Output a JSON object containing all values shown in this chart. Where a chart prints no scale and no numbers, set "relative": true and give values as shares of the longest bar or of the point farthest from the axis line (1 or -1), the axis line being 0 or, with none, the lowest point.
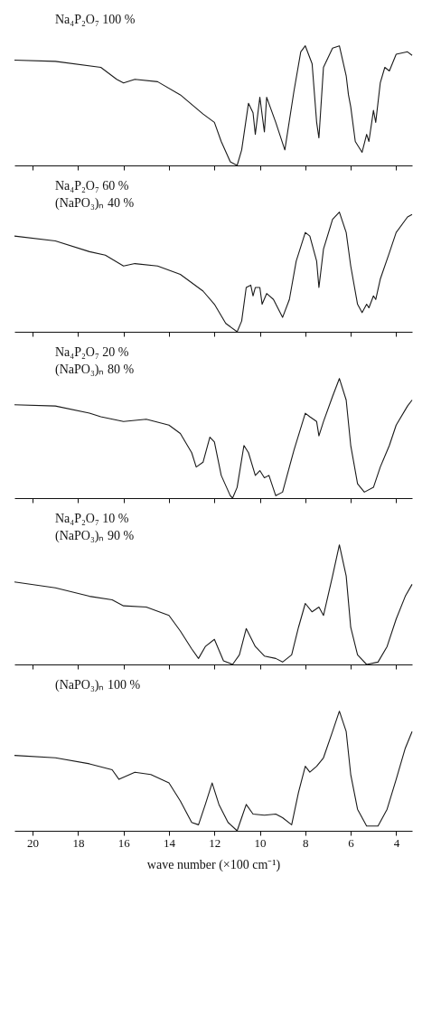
{
  "chart_data": [
    {
      "type": "line",
      "relative": true,
      "color": "#1a1a1a",
      "tick_labels": false,
      "xlim": [
        20.8,
        3.3
      ],
      "xticks": [
        20,
        18,
        16,
        14,
        12,
        10,
        8,
        6,
        4
      ],
      "annotations": [
        "Na₄P₂O₇ 100 %"
      ],
      "x": [
        20.8,
        19,
        17,
        16.3,
        16,
        15.5,
        14.5,
        13.5,
        12.5,
        12,
        11.7,
        11.3,
        11,
        10.8,
        10.5,
        10.3,
        10.2,
        10,
        9.8,
        9.7,
        9.3,
        8.9,
        8.5,
        8.2,
        8,
        7.7,
        7.5,
        7.4,
        7.2,
        6.8,
        6.5,
        6.2,
        6.1,
        6,
        5.8,
        5.5,
        5.3,
        5.2,
        5,
        4.9,
        4.7,
        4.5,
        4.3,
        4,
        3.5,
        3.3
      ],
      "values": [
        0.88,
        0.87,
        0.82,
        0.72,
        0.69,
        0.72,
        0.7,
        0.59,
        0.43,
        0.36,
        0.2,
        0.03,
        0,
        0.13,
        0.52,
        0.44,
        0.26,
        0.57,
        0.28,
        0.57,
        0.36,
        0.13,
        0.62,
        0.95,
        1,
        0.85,
        0.36,
        0.23,
        0.82,
        0.98,
        1,
        0.75,
        0.59,
        0.49,
        0.2,
        0.11,
        0.26,
        0.2,
        0.46,
        0.36,
        0.69,
        0.82,
        0.79,
        0.93,
        0.95,
        0.92
      ]
    },
    {
      "type": "line",
      "relative": true,
      "color": "#1a1a1a",
      "tick_labels": false,
      "xlim": [
        20.8,
        3.3
      ],
      "xticks": [
        20,
        18,
        16,
        14,
        12,
        10,
        8,
        6,
        4
      ],
      "annotations": [
        "Na₄P₂O₇ 60 %",
        "(NaPO₃)ₙ 40 %"
      ],
      "x": [
        20.8,
        19,
        17.5,
        16.8,
        16,
        15.5,
        14.5,
        13.5,
        12.5,
        12,
        11.5,
        11,
        10.8,
        10.6,
        10.4,
        10.3,
        10.2,
        10,
        9.9,
        9.7,
        9.4,
        9,
        8.7,
        8.4,
        8,
        7.8,
        7.5,
        7.4,
        7.2,
        6.8,
        6.5,
        6.2,
        6.1,
        6,
        5.7,
        5.5,
        5.3,
        5.2,
        5,
        4.9,
        4.7,
        4.3,
        4,
        3.5,
        3.3
      ],
      "values": [
        0.8,
        0.76,
        0.67,
        0.64,
        0.55,
        0.57,
        0.55,
        0.48,
        0.34,
        0.23,
        0.07,
        0,
        0.09,
        0.37,
        0.39,
        0.3,
        0.37,
        0.37,
        0.23,
        0.32,
        0.27,
        0.12,
        0.27,
        0.59,
        0.83,
        0.8,
        0.59,
        0.37,
        0.69,
        0.94,
        1,
        0.83,
        0.69,
        0.55,
        0.23,
        0.16,
        0.23,
        0.2,
        0.3,
        0.27,
        0.44,
        0.66,
        0.83,
        0.96,
        0.98
      ]
    },
    {
      "type": "line",
      "relative": true,
      "color": "#1a1a1a",
      "tick_labels": false,
      "xlim": [
        20.8,
        3.3
      ],
      "xticks": [
        20,
        18,
        16,
        14,
        12,
        10,
        8,
        6,
        4
      ],
      "annotations": [
        "Na₄P₂O₇ 20 %",
        "(NaPO₃)ₙ 80 %"
      ],
      "x": [
        20.8,
        19,
        17.5,
        17,
        16,
        15,
        14,
        13.5,
        13,
        12.8,
        12.5,
        12.2,
        12,
        11.7,
        11.3,
        11.2,
        11,
        10.7,
        10.5,
        10.2,
        10,
        9.8,
        9.6,
        9.3,
        9,
        8.5,
        8,
        7.8,
        7.5,
        7.4,
        7.2,
        6.8,
        6.5,
        6.2,
        6,
        5.7,
        5.4,
        5,
        4.7,
        4.3,
        4,
        3.5,
        3.3
      ],
      "values": [
        0.78,
        0.77,
        0.71,
        0.68,
        0.64,
        0.66,
        0.61,
        0.54,
        0.38,
        0.26,
        0.3,
        0.51,
        0.47,
        0.19,
        0.02,
        0,
        0.09,
        0.44,
        0.38,
        0.19,
        0.23,
        0.17,
        0.19,
        0.02,
        0.05,
        0.4,
        0.71,
        0.68,
        0.64,
        0.52,
        0.64,
        0.85,
        1,
        0.82,
        0.44,
        0.12,
        0.05,
        0.09,
        0.26,
        0.44,
        0.61,
        0.77,
        0.82
      ]
    },
    {
      "type": "line",
      "relative": true,
      "color": "#1a1a1a",
      "tick_labels": false,
      "xlim": [
        20.8,
        3.3
      ],
      "xticks": [
        20,
        18,
        16,
        14,
        12,
        10,
        8,
        6,
        4
      ],
      "annotations": [
        "Na₄P₂O₇ 10 %",
        "(NaPO₃)ₙ 90 %"
      ],
      "x": [
        20.8,
        19,
        17.5,
        16.5,
        16,
        15,
        14,
        13.5,
        13,
        12.7,
        12.4,
        12,
        11.6,
        11.2,
        10.9,
        10.6,
        10.2,
        9.8,
        9.3,
        9,
        8.6,
        8.3,
        8,
        7.7,
        7.4,
        7.2,
        6.8,
        6.5,
        6.2,
        6,
        5.7,
        5.3,
        4.8,
        4.4,
        4,
        3.6,
        3.3
      ],
      "values": [
        0.69,
        0.64,
        0.57,
        0.54,
        0.49,
        0.48,
        0.41,
        0.28,
        0.13,
        0.05,
        0.15,
        0.21,
        0.03,
        0,
        0.08,
        0.3,
        0.15,
        0.07,
        0.05,
        0.02,
        0.08,
        0.31,
        0.51,
        0.44,
        0.48,
        0.41,
        0.74,
        1,
        0.74,
        0.31,
        0.08,
        0,
        0.02,
        0.15,
        0.38,
        0.57,
        0.67
      ]
    },
    {
      "type": "line",
      "relative": true,
      "color": "#1a1a1a",
      "xlim": [
        20.8,
        3.3
      ],
      "xticks": [
        20,
        18,
        16,
        14,
        12,
        10,
        8,
        6,
        4
      ],
      "xlabel": "wave number (×100 cm⁻¹)",
      "annotations": [
        "(NaPO₃)ₙ 100 %"
      ],
      "x": [
        20.8,
        19,
        17.5,
        16.5,
        16.2,
        15.5,
        14.8,
        14,
        13.5,
        13,
        12.7,
        12.4,
        12.1,
        11.8,
        11.4,
        11,
        10.8,
        10.6,
        10.3,
        9.8,
        9.3,
        9,
        8.6,
        8.3,
        8,
        7.8,
        7.5,
        7.2,
        6.8,
        6.5,
        6.2,
        6,
        5.7,
        5.3,
        4.8,
        4.4,
        4,
        3.6,
        3.3
      ],
      "values": [
        0.63,
        0.61,
        0.56,
        0.51,
        0.43,
        0.49,
        0.47,
        0.4,
        0.25,
        0.07,
        0.05,
        0.22,
        0.4,
        0.22,
        0.07,
        0,
        0.11,
        0.22,
        0.14,
        0.13,
        0.14,
        0.11,
        0.05,
        0.32,
        0.54,
        0.49,
        0.54,
        0.61,
        0.83,
        1,
        0.83,
        0.47,
        0.18,
        0.04,
        0.04,
        0.18,
        0.43,
        0.69,
        0.83
      ]
    }
  ]
}
